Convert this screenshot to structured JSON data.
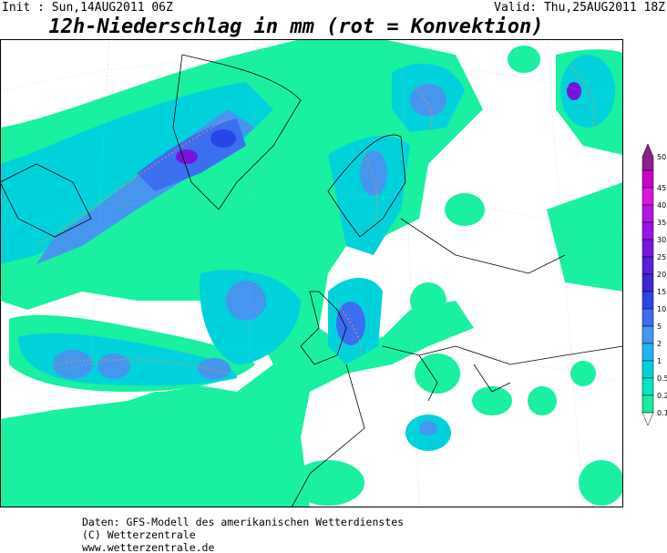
{
  "header": {
    "init": "Init : Sun,14AUG2011 06Z",
    "valid": "Valid: Thu,25AUG2011 18Z",
    "title": "12h-Niederschlag in mm (rot = Konvektion)"
  },
  "legend": {
    "items": [
      {
        "label": "50",
        "color": "#8c1e8c"
      },
      {
        "label": "45",
        "color": "#c800c8"
      },
      {
        "label": "40",
        "color": "#dc14dc"
      },
      {
        "label": "35",
        "color": "#b414e6"
      },
      {
        "label": "30",
        "color": "#9614e6"
      },
      {
        "label": "25",
        "color": "#7814dc"
      },
      {
        "label": "20",
        "color": "#5a1edc"
      },
      {
        "label": "15",
        "color": "#3c28d2"
      },
      {
        "label": "10",
        "color": "#2846e6"
      },
      {
        "label": "5",
        "color": "#3c6ef0"
      },
      {
        "label": "2",
        "color": "#4696f0"
      },
      {
        "label": "1",
        "color": "#1eb4f0"
      },
      {
        "label": "0.5",
        "color": "#00d2dc"
      },
      {
        "label": "0.2",
        "color": "#00e6c0"
      },
      {
        "label": "0.1",
        "color": "#14f0a0"
      }
    ]
  },
  "footer": {
    "lines": [
      "Daten: GFS-Modell des amerikanischen Wetterdienstes",
      "(C) Wetterzentrale",
      "www.wetterzentrale.de"
    ]
  }
}
